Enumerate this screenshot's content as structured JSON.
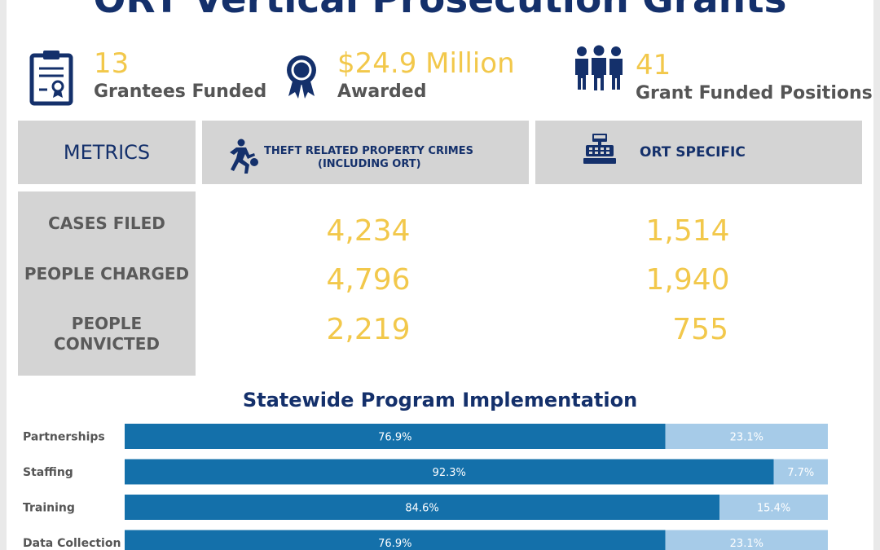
{
  "title": "ORT Vertical Prosecution Grants",
  "summary": [
    {
      "value": "13",
      "label": "Grantees Funded",
      "icon": "clipboard-certificate-icon"
    },
    {
      "value": "$24.9 Million",
      "label": "Awarded",
      "icon": "award-ribbon-icon"
    },
    {
      "value": "41",
      "label": "Grant Funded Positions",
      "icon": "people-group-icon"
    }
  ],
  "metrics_table": {
    "header_label": "METRICS",
    "col1": {
      "line1": "THEFT RELATED PROPERTY CRIMES",
      "line2": "(INCLUDING ORT)",
      "icon": "running-thief-icon"
    },
    "col2": {
      "label": "ORT SPECIFIC",
      "icon": "cash-register-icon"
    },
    "rows": [
      {
        "label": "CASES FILED",
        "theft": "4,234",
        "ort": "1,514"
      },
      {
        "label": "PEOPLE CHARGED",
        "theft": "4,796",
        "ort": "1,940"
      },
      {
        "label": "PEOPLE CONVICTED",
        "theft": "2,219",
        "ort": "755"
      }
    ]
  },
  "colors": {
    "navy": "#14306b",
    "gold": "#f2c84b",
    "bar_dark": "#1470aa",
    "bar_light": "#a6cbe8",
    "box_gray": "#d4d4d4"
  },
  "chart_data": {
    "type": "bar",
    "orientation": "horizontal",
    "stacked": true,
    "title": "Statewide Program Implementation",
    "categories": [
      "Partnerships",
      "Staffing",
      "Training",
      "Data Collection"
    ],
    "series": [
      {
        "values": [
          76.9,
          92.3,
          84.6,
          76.9
        ],
        "labels": [
          "76.9%",
          "92.3%",
          "84.6%",
          "76.9%"
        ],
        "color": "#1470aa"
      },
      {
        "values": [
          23.1,
          7.7,
          15.4,
          23.1
        ],
        "labels": [
          "23.1%",
          "7.7%",
          "15.4%",
          "23.1%"
        ],
        "color": "#a6cbe8"
      }
    ],
    "xlim": [
      0,
      100
    ],
    "grid": false,
    "legend": "none"
  }
}
